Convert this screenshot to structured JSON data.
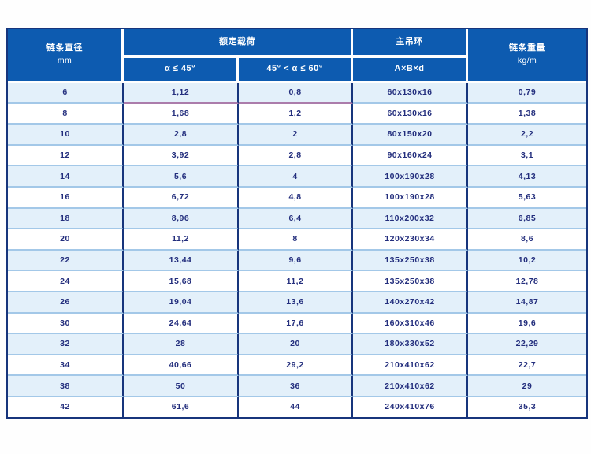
{
  "colors": {
    "header_bg": "#0d5bb0",
    "header_text": "#ffffff",
    "border_dark_navy": "#17357c",
    "row_divider_blue": "#a3c8e8",
    "row_alt_bg": "#e3f0fa",
    "row_bg": "#ffffff",
    "cell_text_navy": "#232e7d",
    "first_row_accent_divider": "#ab7cab"
  },
  "table": {
    "header": {
      "diameter_line1": "链条直径",
      "diameter_line2": "mm",
      "load_group": "额定载荷",
      "load_sub_45": "α ≤ 45°",
      "load_sub_60": "45° < α ≤ 60°",
      "ring_group": "主吊环",
      "ring_sub": "A×B×d",
      "weight_line1": "链条重量",
      "weight_line2": "kg/m"
    },
    "rows": [
      [
        "6",
        "1,12",
        "0,8",
        "60x130x16",
        "0,79"
      ],
      [
        "8",
        "1,68",
        "1,2",
        "60x130x16",
        "1,38"
      ],
      [
        "10",
        "2,8",
        "2",
        "80x150x20",
        "2,2"
      ],
      [
        "12",
        "3,92",
        "2,8",
        "90x160x24",
        "3,1"
      ],
      [
        "14",
        "5,6",
        "4",
        "100x190x28",
        "4,13"
      ],
      [
        "16",
        "6,72",
        "4,8",
        "100x190x28",
        "5,63"
      ],
      [
        "18",
        "8,96",
        "6,4",
        "110x200x32",
        "6,85"
      ],
      [
        "20",
        "11,2",
        "8",
        "120x230x34",
        "8,6"
      ],
      [
        "22",
        "13,44",
        "9,6",
        "135x250x38",
        "10,2"
      ],
      [
        "24",
        "15,68",
        "11,2",
        "135x250x38",
        "12,78"
      ],
      [
        "26",
        "19,04",
        "13,6",
        "140x270x42",
        "14,87"
      ],
      [
        "30",
        "24,64",
        "17,6",
        "160x310x46",
        "19,6"
      ],
      [
        "32",
        "28",
        "20",
        "180x330x52",
        "22,29"
      ],
      [
        "34",
        "40,66",
        "29,2",
        "210x410x62",
        "22,7"
      ],
      [
        "38",
        "50",
        "36",
        "210x410x62",
        "29"
      ],
      [
        "42",
        "61,6",
        "44",
        "240x410x76",
        "35,3"
      ]
    ]
  }
}
